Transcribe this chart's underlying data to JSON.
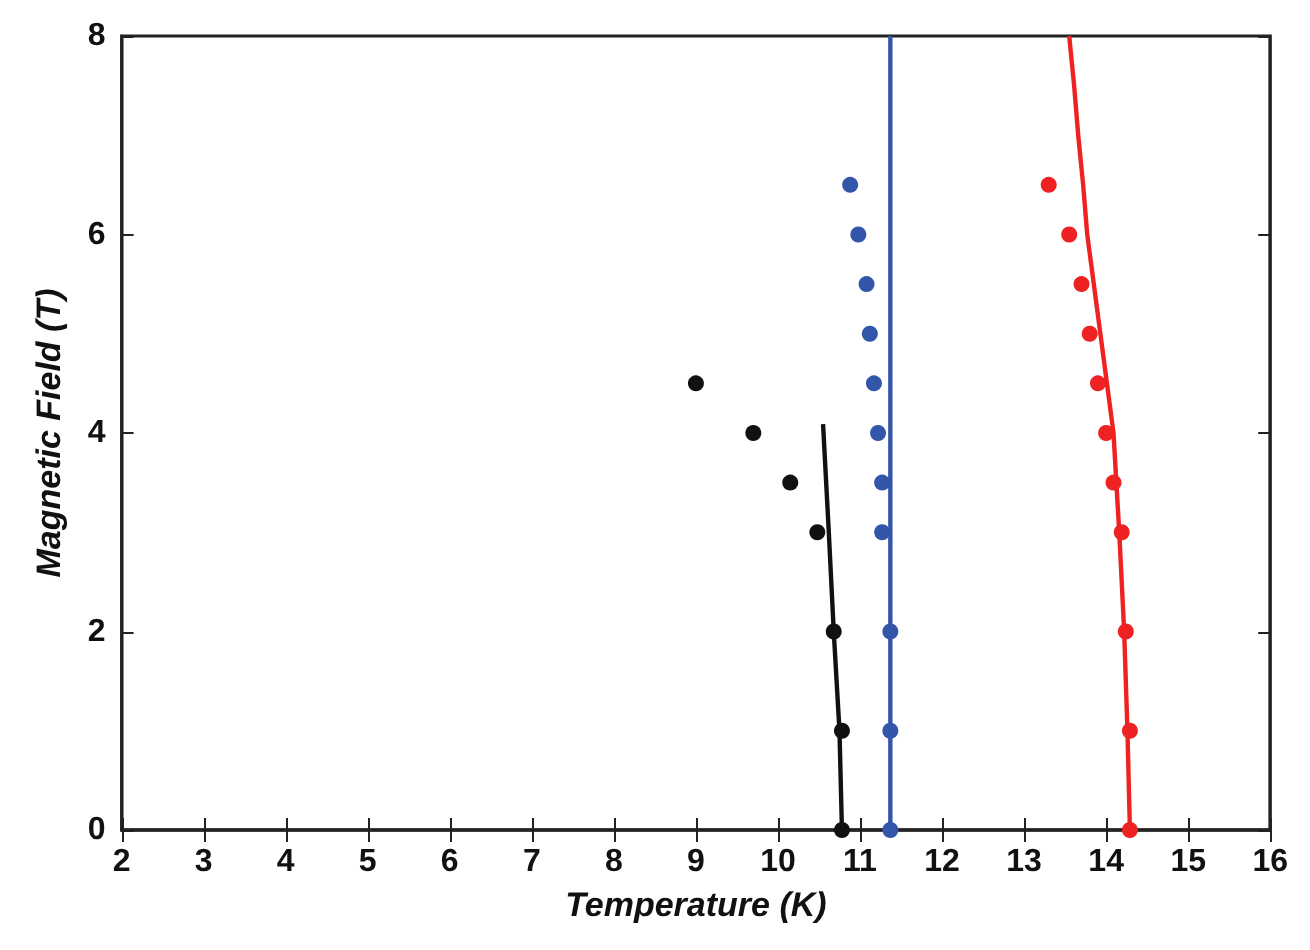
{
  "chart_data": {
    "type": "scatter",
    "xlabel": "Temperature (K)",
    "ylabel": "Magnetic Field (T)",
    "xlim": [
      2,
      16
    ],
    "xticks": [
      2,
      3,
      4,
      5,
      6,
      7,
      8,
      9,
      10,
      11,
      12,
      13,
      14,
      15,
      16
    ],
    "ylim": [
      0,
      8
    ],
    "yticks": [
      0,
      2,
      4,
      6,
      8
    ],
    "grid": false,
    "marker": "circle",
    "series": [
      {
        "color": "#111111",
        "x": [
          9.0,
          9.7,
          10.15,
          10.48,
          10.68,
          10.78,
          10.78
        ],
        "values": [
          4.5,
          4.0,
          3.5,
          3.0,
          2.0,
          1.0,
          0
        ]
      },
      {
        "type": "line",
        "color": "#111111",
        "x": [
          10.55,
          10.62,
          10.68,
          10.75,
          10.78
        ],
        "values": [
          4.09,
          3.0,
          2.0,
          1.0,
          0
        ],
        "marker": "none"
      },
      {
        "color": "#3355aa",
        "x": [
          10.88,
          10.98,
          11.08,
          11.12,
          11.17,
          11.22,
          11.27,
          11.27,
          11.37,
          11.37,
          11.37
        ],
        "values": [
          6.5,
          6.0,
          5.5,
          5.0,
          4.5,
          4.0,
          3.5,
          3.0,
          2.0,
          1.0,
          0
        ]
      },
      {
        "type": "line",
        "color": "#3355aa",
        "x": [
          11.37,
          11.37
        ],
        "values": [
          0,
          8
        ],
        "marker": "none"
      },
      {
        "color": "#ee2222",
        "x": [
          13.3,
          13.55,
          13.7,
          13.8,
          13.9,
          14.0,
          14.09,
          14.19,
          14.24,
          14.29,
          14.29
        ],
        "values": [
          6.5,
          6.0,
          5.5,
          5.0,
          4.5,
          4.0,
          3.5,
          3.0,
          2.0,
          1.0,
          0
        ]
      },
      {
        "type": "line",
        "color": "#ee2222",
        "x": [
          13.55,
          13.61,
          13.66,
          13.72,
          13.77,
          13.85,
          13.93,
          14.01,
          14.09,
          14.16,
          14.22,
          14.26,
          14.29
        ],
        "values": [
          8,
          7.5,
          7,
          6.5,
          6,
          5.5,
          5,
          4.5,
          4,
          3,
          2,
          1,
          0
        ],
        "marker": "none"
      }
    ]
  }
}
